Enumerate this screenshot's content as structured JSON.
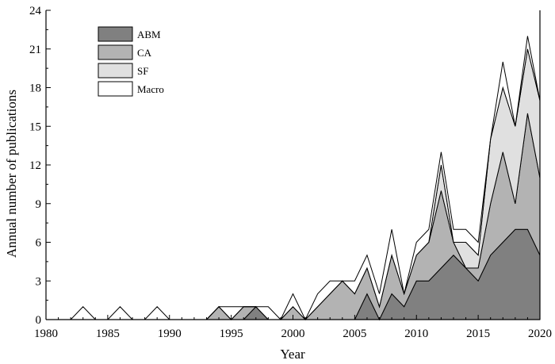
{
  "chart_data": {
    "type": "area",
    "stacked": true,
    "xlabel": "Year",
    "ylabel": "Annual number of publications",
    "xlim": [
      1980,
      2020
    ],
    "ylim": [
      0,
      24
    ],
    "xticks": [
      1980,
      1985,
      1990,
      1995,
      2000,
      2005,
      2010,
      2015,
      2020
    ],
    "yticks": [
      0,
      3,
      6,
      9,
      12,
      15,
      18,
      21,
      24
    ],
    "legend_position": "top-left",
    "grid": false,
    "x": [
      1980,
      1981,
      1982,
      1983,
      1984,
      1985,
      1986,
      1987,
      1988,
      1989,
      1990,
      1991,
      1992,
      1993,
      1994,
      1995,
      1996,
      1997,
      1998,
      1999,
      2000,
      2001,
      2002,
      2003,
      2004,
      2005,
      2006,
      2007,
      2008,
      2009,
      2010,
      2011,
      2012,
      2013,
      2014,
      2015,
      2016,
      2017,
      2018,
      2019,
      2020
    ],
    "series": [
      {
        "name": "ABM",
        "color": "#808080",
        "values": [
          0,
          0,
          0,
          0,
          0,
          0,
          0,
          0,
          0,
          0,
          0,
          0,
          0,
          0,
          0,
          0,
          0,
          1,
          0,
          0,
          0,
          0,
          0,
          0,
          0,
          0,
          2,
          0,
          2,
          1,
          3,
          3,
          4,
          5,
          4,
          3,
          5,
          6,
          7,
          7,
          5
        ]
      },
      {
        "name": "CA",
        "color": "#b3b3b3",
        "values": [
          0,
          0,
          0,
          0,
          0,
          0,
          0,
          0,
          0,
          0,
          0,
          0,
          0,
          0,
          1,
          0,
          1,
          0,
          0,
          0,
          1,
          0,
          1,
          2,
          3,
          2,
          2,
          1,
          3,
          1,
          2,
          3,
          6,
          1,
          0,
          1,
          4,
          7,
          2,
          9,
          6
        ]
      },
      {
        "name": "SF",
        "color": "#e0e0e0",
        "values": [
          0,
          0,
          0,
          0,
          0,
          0,
          0,
          0,
          0,
          0,
          0,
          0,
          0,
          0,
          0,
          0,
          0,
          0,
          0,
          0,
          0,
          0,
          0,
          0,
          0,
          0,
          0,
          0,
          0,
          0,
          0,
          0,
          2,
          0,
          2,
          1,
          5,
          5,
          6,
          5,
          6
        ]
      },
      {
        "name": "Macro",
        "color": "#ffffff",
        "values": [
          0,
          0,
          0,
          1,
          0,
          0,
          1,
          0,
          0,
          1,
          0,
          0,
          0,
          0,
          0,
          1,
          0,
          0,
          1,
          0,
          1,
          0,
          1,
          1,
          0,
          1,
          1,
          1,
          2,
          0,
          1,
          1,
          1,
          1,
          1,
          1,
          0,
          2,
          0,
          1,
          0
        ]
      }
    ]
  }
}
